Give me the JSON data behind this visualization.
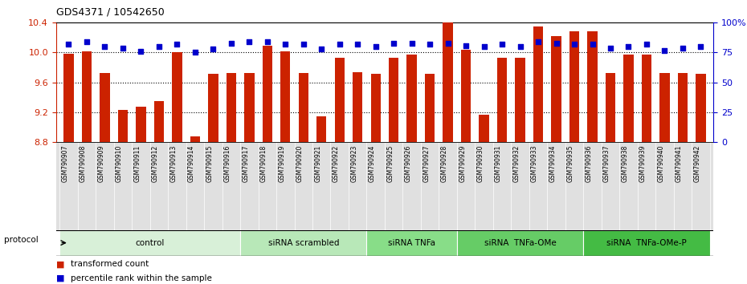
{
  "title": "GDS4371 / 10542650",
  "samples": [
    "GSM790907",
    "GSM790908",
    "GSM790909",
    "GSM790910",
    "GSM790911",
    "GSM790912",
    "GSM790913",
    "GSM790914",
    "GSM790915",
    "GSM790916",
    "GSM790917",
    "GSM790918",
    "GSM790919",
    "GSM790920",
    "GSM790921",
    "GSM790922",
    "GSM790923",
    "GSM790924",
    "GSM790925",
    "GSM790926",
    "GSM790927",
    "GSM790928",
    "GSM790929",
    "GSM790930",
    "GSM790931",
    "GSM790932",
    "GSM790933",
    "GSM790934",
    "GSM790935",
    "GSM790936",
    "GSM790937",
    "GSM790938",
    "GSM790939",
    "GSM790940",
    "GSM790941",
    "GSM790942"
  ],
  "red_values": [
    9.98,
    10.02,
    9.73,
    9.23,
    9.27,
    9.35,
    10.0,
    8.88,
    9.71,
    9.73,
    9.73,
    10.09,
    10.02,
    9.73,
    9.14,
    9.93,
    9.74,
    9.71,
    9.93,
    9.97,
    9.71,
    10.4,
    10.04,
    9.17,
    9.93,
    9.93,
    10.35,
    10.22,
    10.29,
    10.29,
    9.73,
    9.97,
    9.97,
    9.73,
    9.73,
    9.71
  ],
  "blue_values": [
    82,
    84,
    80,
    79,
    76,
    80,
    82,
    75,
    78,
    83,
    84,
    84,
    82,
    82,
    78,
    82,
    82,
    80,
    83,
    83,
    82,
    83,
    81,
    80,
    82,
    80,
    84,
    83,
    82,
    82,
    79,
    80,
    82,
    77,
    79,
    80
  ],
  "groups": [
    {
      "label": "control",
      "start": 0,
      "end": 9,
      "color": "#d8f0d8"
    },
    {
      "label": "siRNA scrambled",
      "start": 10,
      "end": 16,
      "color": "#b8e8b8"
    },
    {
      "label": "siRNA TNFa",
      "start": 17,
      "end": 21,
      "color": "#88dd88"
    },
    {
      "label": "siRNA  TNFa-OMe",
      "start": 22,
      "end": 28,
      "color": "#66cc66"
    },
    {
      "label": "siRNA  TNFa-OMe-P",
      "start": 29,
      "end": 35,
      "color": "#44bb44"
    }
  ],
  "ylim_left": [
    8.8,
    10.4
  ],
  "ylim_right": [
    0,
    100
  ],
  "yticks_left": [
    8.8,
    9.2,
    9.6,
    10.0,
    10.4
  ],
  "yticks_right": [
    0,
    25,
    50,
    75,
    100
  ],
  "bar_color": "#cc2200",
  "dot_color": "#0000cc",
  "background_color": "#ffffff",
  "sample_bg_color": "#e0e0e0",
  "protocol_label": "protocol"
}
